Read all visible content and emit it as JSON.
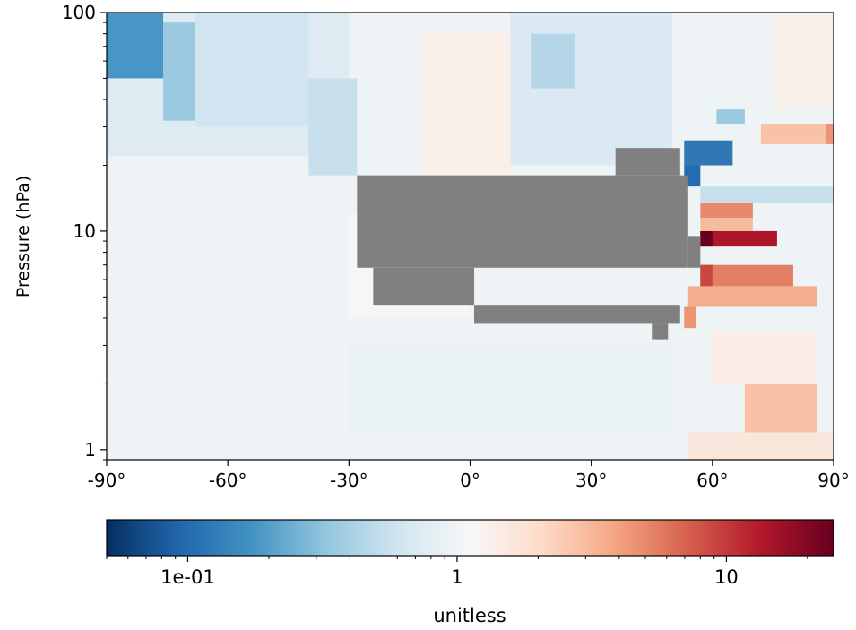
{
  "chart_data": {
    "type": "heatmap",
    "title": "",
    "xlabel": "",
    "ylabel": "Pressure (hPa)",
    "x_range": [
      -90,
      90
    ],
    "y_range": [
      100,
      0.9
    ],
    "y_scale": "log",
    "y_inverted": true,
    "x_ticks": [
      {
        "value": -90,
        "label": "-90°"
      },
      {
        "value": -60,
        "label": "-60°"
      },
      {
        "value": -30,
        "label": "-30°"
      },
      {
        "value": 0,
        "label": "0°"
      },
      {
        "value": 30,
        "label": "30°"
      },
      {
        "value": 60,
        "label": "60°"
      },
      {
        "value": 90,
        "label": "90°"
      }
    ],
    "y_ticks": [
      {
        "value": 1,
        "label": "1"
      },
      {
        "value": 10,
        "label": "10"
      },
      {
        "value": 100,
        "label": "100"
      }
    ],
    "colormap": "RdBu_r",
    "colorbar": {
      "scale": "log",
      "range": [
        0.05,
        25
      ],
      "ticks": [
        {
          "value": 0.1,
          "label": "1e-01"
        },
        {
          "value": 1,
          "label": "1"
        },
        {
          "value": 10,
          "label": "10"
        }
      ],
      "label": "unitless"
    },
    "missing_color": "#808080",
    "regions": [
      {
        "lat": [
          -90,
          90
        ],
        "p": [
          100,
          0.9
        ],
        "value": 0.96
      },
      {
        "lat": [
          -90,
          -30
        ],
        "p": [
          100,
          22
        ],
        "value": 0.75
      },
      {
        "lat": [
          -90,
          -76
        ],
        "p": [
          100,
          50
        ],
        "value": 0.18
      },
      {
        "lat": [
          -76,
          -68
        ],
        "p": [
          90,
          32
        ],
        "value": 0.35
      },
      {
        "lat": [
          -68,
          -40
        ],
        "p": [
          100,
          30
        ],
        "value": 0.6
      },
      {
        "lat": [
          -40,
          -28
        ],
        "p": [
          50,
          18
        ],
        "value": 0.55
      },
      {
        "lat": [
          -12,
          10
        ],
        "p": [
          80,
          18
        ],
        "value": 1.35
      },
      {
        "lat": [
          10,
          50
        ],
        "p": [
          100,
          20
        ],
        "value": 0.7
      },
      {
        "lat": [
          15,
          26
        ],
        "p": [
          80,
          45
        ],
        "value": 0.45
      },
      {
        "lat": [
          -30,
          0
        ],
        "p": [
          12,
          4
        ],
        "value": 1.15
      },
      {
        "lat": [
          -30,
          50
        ],
        "p": [
          3,
          1.2
        ],
        "value": 0.9
      },
      {
        "lat": [
          54,
          90
        ],
        "p": [
          1.2,
          0.9
        ],
        "value": 1.6
      },
      {
        "lat": [
          68,
          86
        ],
        "p": [
          2,
          1.2
        ],
        "value": 2.8
      },
      {
        "lat": [
          60,
          86
        ],
        "p": [
          3.5,
          2
        ],
        "value": 1.4
      },
      {
        "lat": [
          53,
          56
        ],
        "p": [
          4.5,
          3.6
        ],
        "value": 4.5
      },
      {
        "lat": [
          54,
          86
        ],
        "p": [
          5.6,
          4.5
        ],
        "value": 3.5
      },
      {
        "lat": [
          57,
          80
        ],
        "p": [
          7,
          5.6
        ],
        "value": 5.5
      },
      {
        "lat": [
          57,
          60
        ],
        "p": [
          7,
          5.6
        ],
        "value": 9
      },
      {
        "lat": [
          57,
          76
        ],
        "p": [
          10,
          8.5
        ],
        "value": 14
      },
      {
        "lat": [
          57,
          60
        ],
        "p": [
          10,
          8.5
        ],
        "value": 25
      },
      {
        "lat": [
          57,
          70
        ],
        "p": [
          11.5,
          10
        ],
        "value": 3
      },
      {
        "lat": [
          57,
          70
        ],
        "p": [
          13.5,
          11.5
        ],
        "value": 5
      },
      {
        "lat": [
          57,
          90
        ],
        "p": [
          16,
          13.5
        ],
        "value": 0.55
      },
      {
        "lat": [
          53,
          57
        ],
        "p": [
          20,
          16
        ],
        "value": 0.1
      },
      {
        "lat": [
          53,
          65
        ],
        "p": [
          26,
          20
        ],
        "value": 0.12
      },
      {
        "lat": [
          72,
          90
        ],
        "p": [
          31,
          25
        ],
        "value": 2.8
      },
      {
        "lat": [
          88,
          90
        ],
        "p": [
          31,
          25
        ],
        "value": 4.5
      },
      {
        "lat": [
          61,
          68
        ],
        "p": [
          36,
          31
        ],
        "value": 0.35
      },
      {
        "lat": [
          75,
          90
        ],
        "p": [
          100,
          36
        ],
        "value": 1.3
      }
    ],
    "missing_regions": [
      {
        "lat": [
          -28,
          54
        ],
        "p": [
          18,
          6.8
        ]
      },
      {
        "lat": [
          -24,
          1
        ],
        "p": [
          6.8,
          4.6
        ]
      },
      {
        "lat": [
          1,
          52
        ],
        "p": [
          4.6,
          3.8
        ]
      },
      {
        "lat": [
          45,
          49
        ],
        "p": [
          3.8,
          3.2
        ]
      },
      {
        "lat": [
          36,
          52
        ],
        "p": [
          24,
          18
        ]
      },
      {
        "lat": [
          54,
          57
        ],
        "p": [
          6.8,
          9.5
        ]
      }
    ]
  }
}
